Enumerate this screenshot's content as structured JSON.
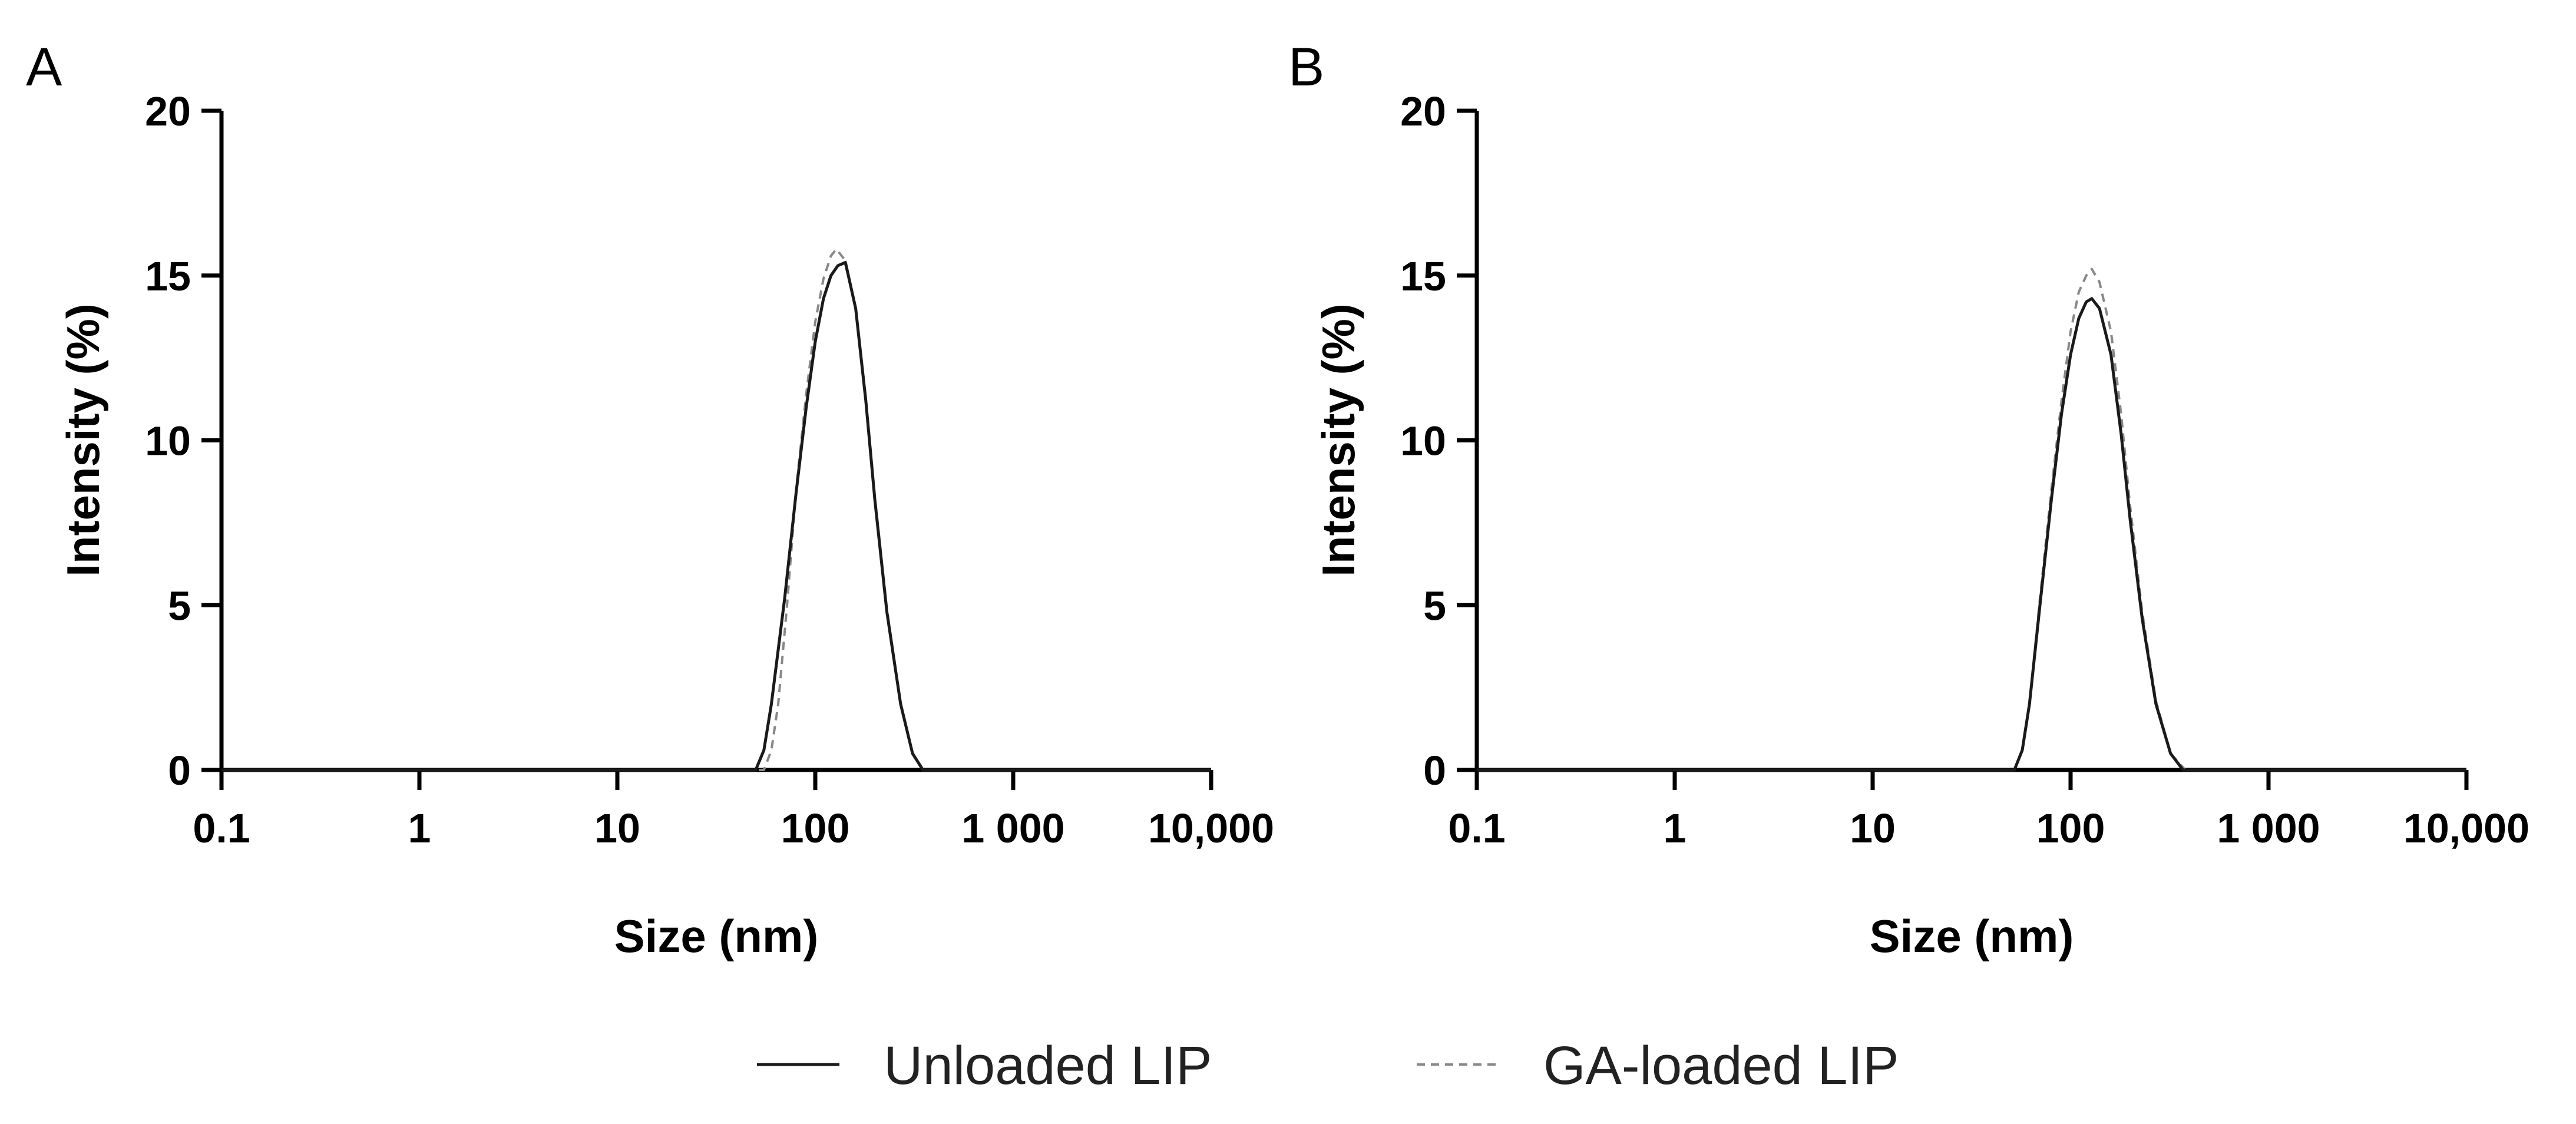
{
  "chart_data": [
    {
      "type": "line",
      "panel": "A",
      "xlabel": "Size (nm)",
      "ylabel": "Intensity (%)",
      "xscale": "log",
      "xlim": [
        0.1,
        10000
      ],
      "ylim": [
        0,
        20
      ],
      "xticks": [
        0.1,
        1,
        10,
        100,
        1000,
        10000
      ],
      "xtick_labels": [
        "0.1",
        "1",
        "10",
        "100",
        "1 000",
        "10,000"
      ],
      "yticks": [
        0,
        5,
        10,
        15,
        20
      ],
      "ytick_labels": [
        "0",
        "5",
        "10",
        "15",
        "20"
      ],
      "series": [
        {
          "name": "Unloaded LIP",
          "style": "solid",
          "color": "#1a1a1a",
          "x": [
            0.1,
            50,
            55,
            60,
            70,
            80,
            90,
            100,
            110,
            120,
            130,
            142,
            160,
            180,
            200,
            230,
            270,
            310,
            350,
            10000
          ],
          "y": [
            0,
            0,
            0.6,
            2.0,
            5.2,
            8.4,
            11.0,
            13.0,
            14.3,
            15.0,
            15.3,
            15.4,
            14.0,
            11.2,
            8.2,
            4.8,
            2.0,
            0.5,
            0,
            0
          ]
        },
        {
          "name": "GA-loaded LIP",
          "style": "dashed",
          "color": "#888888",
          "x": [
            0.1,
            55,
            60,
            65,
            72,
            80,
            90,
            100,
            110,
            120,
            128,
            140,
            160,
            180,
            200,
            230,
            270,
            310,
            350,
            10000
          ],
          "y": [
            0,
            0,
            0.6,
            2.0,
            5.0,
            8.5,
            11.4,
            13.6,
            14.9,
            15.6,
            15.8,
            15.5,
            14.0,
            11.3,
            8.3,
            4.9,
            2.0,
            0.5,
            0,
            0
          ]
        }
      ]
    },
    {
      "type": "line",
      "panel": "B",
      "xlabel": "Size (nm)",
      "ylabel": "Intensity (%)",
      "xscale": "log",
      "xlim": [
        0.1,
        10000
      ],
      "ylim": [
        0,
        20
      ],
      "xticks": [
        0.1,
        1,
        10,
        100,
        1000,
        10000
      ],
      "xtick_labels": [
        "0.1",
        "1",
        "10",
        "100",
        "1 000",
        "10,000"
      ],
      "yticks": [
        0,
        5,
        10,
        15,
        20
      ],
      "ytick_labels": [
        "0",
        "5",
        "10",
        "15",
        "20"
      ],
      "series": [
        {
          "name": "Unloaded LIP",
          "style": "solid",
          "color": "#1a1a1a",
          "x": [
            0.1,
            52,
            57,
            62,
            70,
            80,
            90,
            100,
            110,
            120,
            128,
            140,
            160,
            180,
            200,
            230,
            270,
            320,
            370,
            10000
          ],
          "y": [
            0,
            0,
            0.6,
            2.0,
            5.0,
            8.2,
            10.8,
            12.6,
            13.7,
            14.2,
            14.3,
            14.0,
            12.6,
            10.2,
            7.6,
            4.6,
            2.0,
            0.5,
            0,
            0
          ]
        },
        {
          "name": "GA-loaded LIP",
          "style": "dashed",
          "color": "#888888",
          "x": [
            0.1,
            52,
            57,
            62,
            70,
            80,
            90,
            100,
            110,
            120,
            128,
            140,
            160,
            180,
            200,
            230,
            270,
            320,
            380,
            10000
          ],
          "y": [
            0,
            0,
            0.6,
            2.0,
            5.2,
            8.5,
            11.2,
            13.3,
            14.5,
            15.0,
            15.2,
            14.8,
            13.3,
            10.8,
            8.0,
            4.8,
            2.1,
            0.5,
            0,
            0
          ]
        }
      ]
    }
  ],
  "legend": {
    "items": [
      {
        "label": "Unloaded LIP",
        "style": "solid",
        "color": "#1a1a1a"
      },
      {
        "label": "GA-loaded LIP",
        "style": "dashed",
        "color": "#888888"
      }
    ]
  }
}
